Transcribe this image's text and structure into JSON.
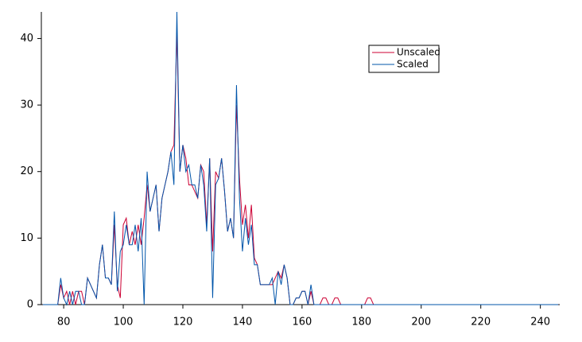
{
  "chart_data": {
    "type": "line",
    "x": [
      73,
      74,
      75,
      76,
      77,
      78,
      79,
      80,
      81,
      82,
      83,
      84,
      85,
      86,
      87,
      88,
      89,
      90,
      91,
      92,
      93,
      94,
      95,
      96,
      97,
      98,
      99,
      100,
      101,
      102,
      103,
      104,
      105,
      106,
      107,
      108,
      109,
      110,
      111,
      112,
      113,
      114,
      115,
      116,
      117,
      118,
      119,
      120,
      121,
      122,
      123,
      124,
      125,
      126,
      127,
      128,
      129,
      130,
      131,
      132,
      133,
      134,
      135,
      136,
      137,
      138,
      139,
      140,
      141,
      142,
      143,
      144,
      145,
      146,
      147,
      148,
      149,
      150,
      151,
      152,
      153,
      154,
      155,
      156,
      157,
      158,
      159,
      160,
      161,
      162,
      163,
      164,
      165,
      166,
      167,
      168,
      169,
      170,
      171,
      172,
      173,
      174,
      175,
      176,
      177,
      178,
      179,
      180,
      181,
      182,
      183,
      184,
      185,
      246
    ],
    "series": [
      {
        "name": "Unscaled",
        "color": "#cc0033",
        "values": [
          0,
          0,
          0,
          0,
          0,
          0,
          3,
          1,
          2,
          0,
          2,
          0,
          2,
          2,
          0,
          4,
          3,
          2,
          1,
          6,
          9,
          4,
          4,
          3,
          12,
          3,
          1,
          12,
          13,
          9,
          11,
          9,
          12,
          9,
          13,
          18,
          14,
          16,
          18,
          11,
          16,
          18,
          20,
          23,
          24,
          41,
          20,
          24,
          22,
          18,
          18,
          17,
          16,
          21,
          20,
          12,
          22,
          8,
          20,
          19,
          22,
          17,
          11,
          13,
          10,
          30,
          19,
          12,
          15,
          10,
          15,
          7,
          6,
          3,
          3,
          3,
          3,
          3,
          4,
          5,
          4,
          6,
          4,
          0,
          0,
          1,
          1,
          2,
          2,
          0,
          2,
          0,
          0,
          0,
          1,
          1,
          0,
          0,
          1,
          1,
          0,
          0,
          0,
          0,
          0,
          0,
          0,
          0,
          0,
          1,
          1,
          0,
          0,
          0
        ]
      },
      {
        "name": "Scaled",
        "color": "#0055aa",
        "values": [
          0,
          0,
          0,
          0,
          0,
          0,
          4,
          1,
          0,
          2,
          0,
          2,
          2,
          0,
          0,
          4,
          3,
          2,
          1,
          6,
          9,
          4,
          4,
          3,
          14,
          2,
          8,
          9,
          12,
          9,
          9,
          12,
          8,
          13,
          0,
          20,
          14,
          16,
          18,
          11,
          16,
          18,
          20,
          23,
          18,
          44,
          20,
          24,
          20,
          21,
          18,
          18,
          16,
          21,
          18,
          11,
          22,
          1,
          18,
          19,
          22,
          17,
          11,
          13,
          10,
          33,
          16,
          8,
          13,
          9,
          12,
          6,
          6,
          3,
          3,
          3,
          3,
          4,
          0,
          5,
          3,
          6,
          4,
          0,
          0,
          1,
          1,
          2,
          2,
          0,
          3,
          0,
          0,
          0,
          0,
          0,
          0,
          0,
          0,
          0,
          0,
          0,
          0,
          0,
          0,
          0,
          0,
          0,
          0,
          0,
          0,
          0,
          0,
          0
        ]
      }
    ],
    "xlim": [
      72.5,
      246.5
    ],
    "xticks": [
      80,
      100,
      120,
      140,
      160,
      180,
      200,
      220,
      240
    ],
    "ylim": [
      0,
      44
    ],
    "yticks": [
      0,
      10,
      20,
      30,
      40
    ],
    "legend": "upper-right"
  }
}
